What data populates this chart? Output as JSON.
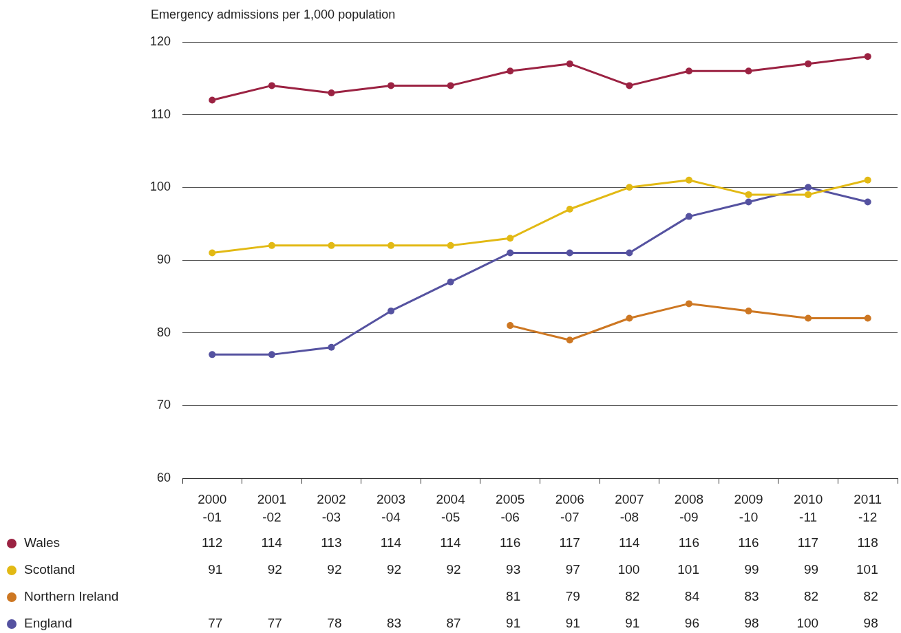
{
  "chart_data": {
    "type": "line",
    "ylabel": "Emergency admissions per 1,000 population",
    "categories": [
      "2000-01",
      "2001-02",
      "2002-03",
      "2003-04",
      "2004-05",
      "2005-06",
      "2006-07",
      "2007-08",
      "2008-09",
      "2009-10",
      "2010-11",
      "2011-12"
    ],
    "series": [
      {
        "name": "Wales",
        "color": "#9b2242",
        "values": [
          112,
          114,
          113,
          114,
          114,
          116,
          117,
          114,
          116,
          116,
          117,
          118
        ]
      },
      {
        "name": "Scotland",
        "color": "#e2b914",
        "values": [
          91,
          92,
          92,
          92,
          92,
          93,
          97,
          100,
          101,
          99,
          99,
          101
        ]
      },
      {
        "name": "Northern Ireland",
        "color": "#cd7722",
        "values": [
          null,
          null,
          null,
          null,
          null,
          81,
          79,
          82,
          84,
          83,
          82,
          82
        ]
      },
      {
        "name": "England",
        "color": "#5552a0",
        "values": [
          77,
          77,
          78,
          83,
          87,
          91,
          91,
          91,
          96,
          98,
          100,
          98
        ]
      }
    ],
    "ylim": [
      60,
      120
    ],
    "yticks": [
      60,
      70,
      80,
      90,
      100,
      110,
      120
    ],
    "grid": "y",
    "legend": "bottom left",
    "marker": "circle",
    "line_style": "solid",
    "data_labels": true
  }
}
